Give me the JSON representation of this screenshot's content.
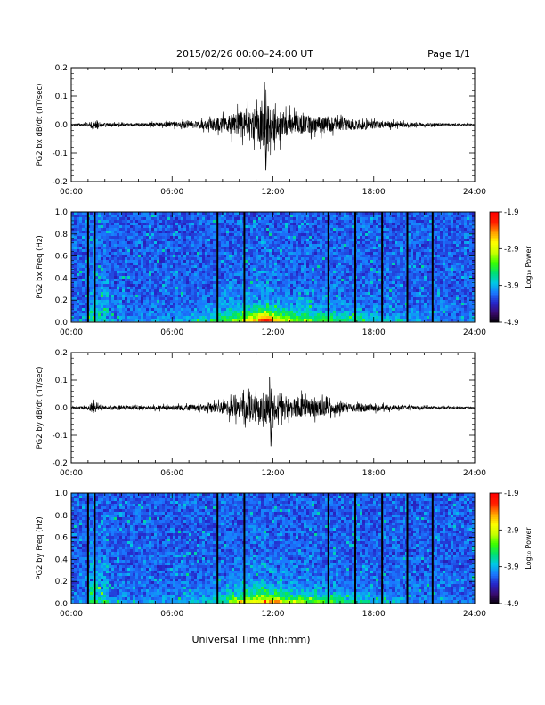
{
  "header": {
    "title": "2015/02/26  00:00–24:00 UT",
    "page": "Page 1/1"
  },
  "x_axis": {
    "label": "Universal Time (hh:mm)",
    "range": [
      0,
      24
    ],
    "ticks": [
      0,
      6,
      12,
      18,
      24
    ],
    "tick_labels": [
      "00:00",
      "06:00",
      "12:00",
      "18:00",
      "24:00"
    ]
  },
  "colorbar": {
    "label": "Log₁₀ Power",
    "range": [
      -4.9,
      -1.9
    ],
    "tick_labels": [
      "-1.9",
      "-2.9",
      "-3.9",
      "-4.9"
    ],
    "colors": [
      "#000000",
      "#3a0a6e",
      "#2626c8",
      "#1a78ff",
      "#00c8e6",
      "#00e070",
      "#3cff00",
      "#c8ff00",
      "#ffff00",
      "#ffa000",
      "#ff2000",
      "#ff0000"
    ]
  },
  "chart_data": [
    {
      "type": "line",
      "ylabel": "PG2 bx dB/dt (nT/sec)",
      "ylim": [
        -0.2,
        0.2
      ],
      "yticks": [
        "0.2",
        "0.1",
        "0.0",
        "-0.1",
        "-0.2"
      ],
      "grid": false,
      "x": [
        0,
        1,
        1.3,
        1.6,
        2,
        4,
        6,
        8,
        9,
        10,
        11,
        11.5,
        12,
        13,
        14,
        15,
        16,
        18,
        20,
        22,
        24
      ],
      "amplitude": [
        0.005,
        0.01,
        0.03,
        0.02,
        0.01,
        0.01,
        0.015,
        0.03,
        0.05,
        0.08,
        0.1,
        0.14,
        0.1,
        0.07,
        0.06,
        0.05,
        0.04,
        0.025,
        0.015,
        0.008,
        0.005
      ],
      "peak": {
        "x": 11.5,
        "max": 0.15,
        "min": -0.16
      }
    },
    {
      "type": "heatmap",
      "ylabel": "PG2 bx Freq (Hz)",
      "ylim": [
        0,
        1.0
      ],
      "yticks": [
        "1.0",
        "0.8",
        "0.6",
        "0.4",
        "0.2",
        "0.0"
      ],
      "z_range": [
        -4.9,
        -1.9
      ],
      "gaps_hours": [
        1.0,
        1.4,
        8.7,
        10.3,
        15.3,
        16.9,
        18.5,
        20.0,
        21.5
      ]
    },
    {
      "type": "line",
      "ylabel": "PG2 by dB/dt (nT/sec)",
      "ylim": [
        -0.2,
        0.2
      ],
      "yticks": [
        "0.2",
        "0.1",
        "0.0",
        "-0.1",
        "-0.2"
      ],
      "grid": false,
      "x": [
        0,
        1,
        1.3,
        1.6,
        2,
        4,
        6,
        8,
        9,
        10,
        11,
        11.5,
        12,
        13,
        14,
        15,
        16,
        18,
        20,
        22,
        24
      ],
      "amplitude": [
        0.005,
        0.01,
        0.04,
        0.02,
        0.012,
        0.012,
        0.015,
        0.025,
        0.04,
        0.07,
        0.09,
        0.11,
        0.09,
        0.07,
        0.06,
        0.05,
        0.035,
        0.022,
        0.012,
        0.008,
        0.005
      ],
      "peak": {
        "x": 11.8,
        "max": 0.11,
        "min": -0.14
      }
    },
    {
      "type": "heatmap",
      "ylabel": "PG2 by Freq (Hz)",
      "ylim": [
        0,
        1.0
      ],
      "yticks": [
        "1.0",
        "0.8",
        "0.6",
        "0.4",
        "0.2",
        "0.0"
      ],
      "z_range": [
        -4.9,
        -1.9
      ],
      "gaps_hours": [
        1.0,
        1.4,
        8.7,
        10.3,
        15.3,
        16.9,
        18.5,
        20.0,
        21.5
      ]
    }
  ]
}
